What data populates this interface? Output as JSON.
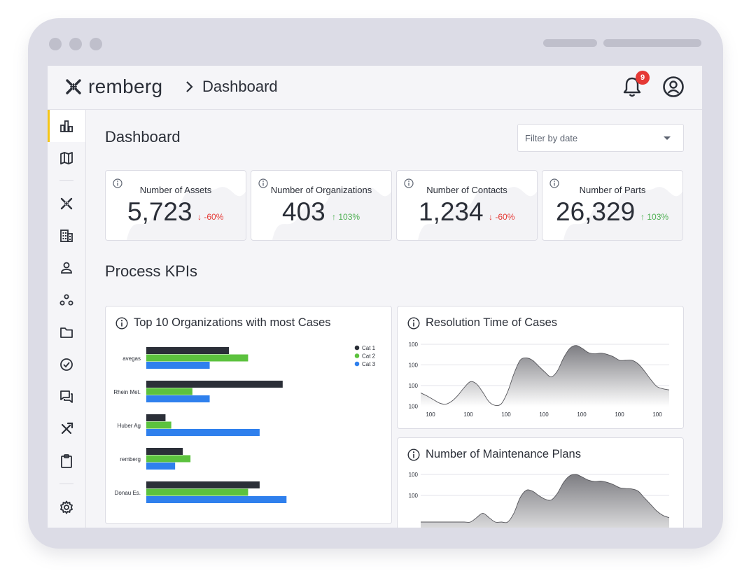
{
  "header": {
    "brand": "remberg",
    "breadcrumb": "Dashboard",
    "notification_count": "9"
  },
  "sidebar": {
    "items": [
      {
        "icon": "chart-bar-icon",
        "active": true
      },
      {
        "icon": "map-icon"
      },
      {
        "icon": "remberg-logo-icon"
      },
      {
        "icon": "building-icon"
      },
      {
        "icon": "person-icon"
      },
      {
        "icon": "group-icon"
      },
      {
        "icon": "folder-icon"
      },
      {
        "icon": "check-circle-icon"
      },
      {
        "icon": "chat-icon"
      },
      {
        "icon": "tools-icon"
      },
      {
        "icon": "clipboard-icon"
      },
      {
        "icon": "gear-icon"
      }
    ]
  },
  "page": {
    "title": "Dashboard",
    "filter_placeholder": "Filter by date",
    "section_title": "Process KPIs"
  },
  "kpis": [
    {
      "label": "Number of Assets",
      "value": "5,723",
      "delta": "-60%",
      "direction": "down"
    },
    {
      "label": "Number of Organizations",
      "value": "403",
      "delta": "103%",
      "direction": "up"
    },
    {
      "label": "Number of Contacts",
      "value": "1,234",
      "delta": "-60%",
      "direction": "down"
    },
    {
      "label": "Number of Parts",
      "value": "26,329",
      "delta": "103%",
      "direction": "up"
    }
  ],
  "colors": {
    "cat1": "#2b2f38",
    "cat2": "#5cc23e",
    "cat3": "#2f80ed",
    "accent": "#f5c518",
    "down": "#e53935",
    "up": "#4caf50"
  },
  "chart_data": [
    {
      "type": "bar",
      "orientation": "horizontal",
      "title": "Top 10 Organizations with most Cases",
      "categories": [
        "avegas",
        "Rhein Met.",
        "Huber Ag",
        "remberg",
        "Donau Es."
      ],
      "series": [
        {
          "name": "Cat 1",
          "values": [
            43,
            71,
            10,
            19,
            59
          ]
        },
        {
          "name": "Cat 2",
          "values": [
            53,
            24,
            13,
            23,
            53
          ]
        },
        {
          "name": "Cat 3",
          "values": [
            33,
            33,
            59,
            15,
            73
          ]
        }
      ],
      "xlim": [
        0,
        100
      ],
      "legend": "top-right"
    },
    {
      "type": "area",
      "title": "Resolution Time of Cases",
      "x_ticks": [
        "100",
        "100",
        "100",
        "100",
        "100",
        "100",
        "100"
      ],
      "y_ticks": [
        "100",
        "100",
        "100",
        "100"
      ],
      "x": [
        0,
        1,
        2,
        3,
        4,
        5,
        6,
        7,
        8,
        9,
        10,
        11,
        12,
        13,
        14,
        15,
        16,
        17,
        18,
        19,
        20,
        21,
        22,
        23,
        24,
        25,
        26,
        27,
        28,
        29,
        30,
        31,
        32,
        33,
        34,
        35,
        36,
        37,
        38,
        39,
        40
      ],
      "values": [
        0.23,
        0.18,
        0.12,
        0.06,
        0.04,
        0.09,
        0.19,
        0.32,
        0.42,
        0.38,
        0.24,
        0.08,
        0.02,
        0.05,
        0.25,
        0.55,
        0.78,
        0.82,
        0.78,
        0.68,
        0.58,
        0.5,
        0.6,
        0.82,
        0.98,
        1.03,
        0.98,
        0.91,
        0.89,
        0.9,
        0.88,
        0.84,
        0.78,
        0.78,
        0.78,
        0.72,
        0.6,
        0.46,
        0.34,
        0.3,
        0.28
      ],
      "grid": true
    },
    {
      "type": "area",
      "title": "Number of Maintenance Plans",
      "y_ticks": [
        "100",
        "100"
      ],
      "x": [
        0,
        1,
        2,
        3,
        4,
        5,
        6,
        7,
        8,
        9,
        10,
        11,
        12,
        13,
        14,
        15,
        16,
        17,
        18,
        19,
        20,
        21,
        22,
        23,
        24,
        25,
        26,
        27,
        28,
        29,
        30,
        31,
        32,
        33,
        34,
        35,
        36,
        37,
        38,
        39,
        40
      ],
      "values": [
        0,
        0,
        0,
        0,
        0,
        0,
        0,
        0,
        0,
        0.1,
        0.2,
        0.1,
        0,
        0,
        0,
        0.2,
        0.55,
        0.72,
        0.7,
        0.6,
        0.52,
        0.5,
        0.65,
        0.9,
        1.05,
        1.08,
        1.02,
        0.95,
        0.92,
        0.93,
        0.9,
        0.85,
        0.78,
        0.76,
        0.75,
        0.7,
        0.55,
        0.4,
        0.25,
        0.15,
        0.1
      ],
      "grid": true
    }
  ]
}
